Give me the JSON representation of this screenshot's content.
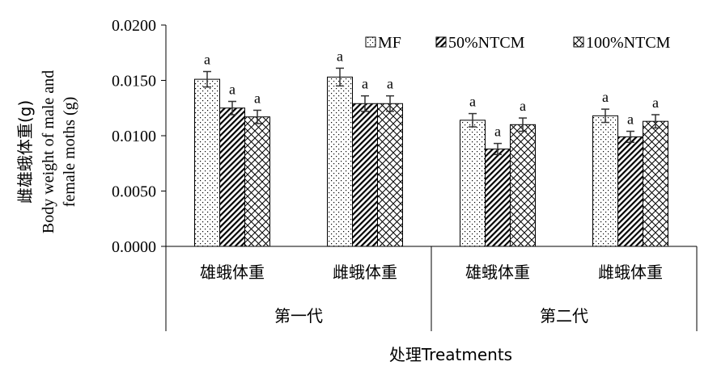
{
  "chart_data": {
    "type": "bar",
    "ylabel_line1": "雌雄蛾体重(g)",
    "ylabel_line2": "Body weight of male and",
    "ylabel_line3": "female moths (g)",
    "xlabel": "处理Treatments",
    "ylim": [
      0,
      0.02
    ],
    "yticks": [
      "0.0000",
      "0.0050",
      "0.0100",
      "0.0150",
      "0.0200"
    ],
    "ytick_values": [
      0,
      0.005,
      0.01,
      0.015,
      0.02
    ],
    "categories": [
      "雄蛾体重",
      "雌蛾体重",
      "雄蛾体重",
      "雌蛾体重"
    ],
    "groups": [
      {
        "label": "第一代",
        "span": [
          0,
          1
        ]
      },
      {
        "label": "第二代",
        "span": [
          2,
          3
        ]
      }
    ],
    "legend_position": "top-right",
    "grid": false,
    "series": [
      {
        "name": "MF",
        "pattern": "dots",
        "values": [
          0.0151,
          0.0153,
          0.0114,
          0.0118
        ],
        "errors": [
          0.0007,
          0.0008,
          0.0006,
          0.0006
        ],
        "letters": [
          "a",
          "a",
          "a",
          "a"
        ]
      },
      {
        "name": "50%NTCM",
        "pattern": "diagonal",
        "values": [
          0.0125,
          0.0129,
          0.0088,
          0.0099
        ],
        "errors": [
          0.0006,
          0.0007,
          0.0005,
          0.0005
        ],
        "letters": [
          "a",
          "a",
          "a",
          "a"
        ]
      },
      {
        "name": "100%NTCM",
        "pattern": "crosshatch",
        "values": [
          0.0117,
          0.0129,
          0.011,
          0.0113
        ],
        "errors": [
          0.0006,
          0.0007,
          0.0006,
          0.0006
        ],
        "letters": [
          "a",
          "a",
          "a",
          "a"
        ]
      }
    ]
  }
}
